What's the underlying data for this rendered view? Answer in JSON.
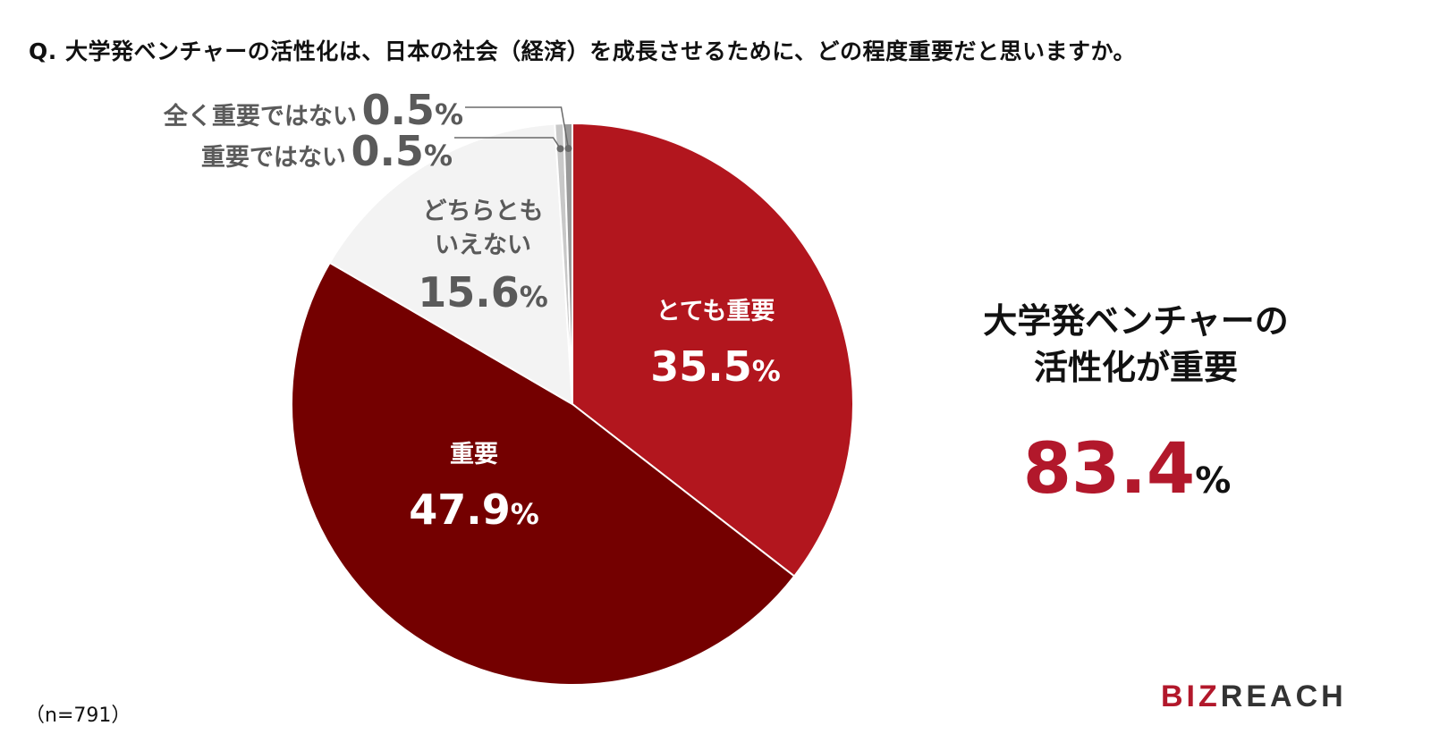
{
  "question": "Q. 大学発ベンチャーの活性化は、日本の社会（経済）を成長させるために、どの程度重要だと思いますか。",
  "chart_data": {
    "type": "pie",
    "slices": [
      {
        "label": "とても重要",
        "value": 35.5,
        "value_text": "35.5",
        "color": "#b2161e"
      },
      {
        "label": "重要",
        "value": 47.9,
        "value_text": "47.9",
        "color": "#740000"
      },
      {
        "label": "どちらとも\nいえない",
        "label_lines": [
          "どちらとも",
          "いえない"
        ],
        "value": 15.6,
        "value_text": "15.6",
        "color": "#f3f3f3"
      },
      {
        "label": "重要ではない",
        "value": 0.5,
        "value_text": "0.5",
        "color": "#c8c8c8"
      },
      {
        "label": "全く重要ではない",
        "value": 0.5,
        "value_text": "0.5",
        "color": "#9a9a9a"
      }
    ],
    "percent_sign": "%"
  },
  "summary": {
    "title_lines": [
      "大学発ベンチャーの",
      "活性化が重要"
    ],
    "total_value": "83.4",
    "total_sign": "%"
  },
  "sample_size": "（n=791）",
  "logo": {
    "text_red": "BIZ",
    "text_rest": "REACH"
  }
}
